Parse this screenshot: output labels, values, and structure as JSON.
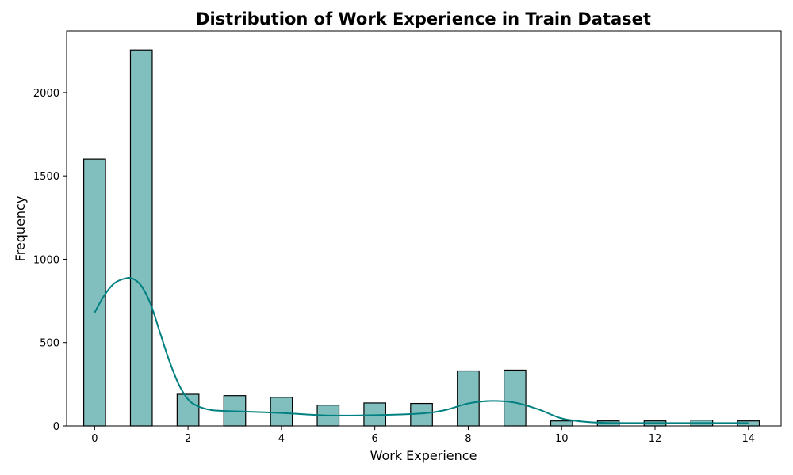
{
  "chart_data": {
    "type": "bar",
    "subtype": "histogram-with-kde",
    "title": "Distribution of Work Experience in Train Dataset",
    "xlabel": "Work Experience",
    "ylabel": "Frequency",
    "xlim": [
      -0.6,
      14.7
    ],
    "ylim": [
      0,
      2370
    ],
    "xticks": [
      0,
      2,
      4,
      6,
      8,
      10,
      12,
      14
    ],
    "yticks": [
      0,
      500,
      1000,
      1500,
      2000
    ],
    "bin_width": 0.4667,
    "bars": [
      {
        "x": 0,
        "value": 1600
      },
      {
        "x": 1,
        "value": 2255
      },
      {
        "x": 2,
        "value": 190
      },
      {
        "x": 3,
        "value": 182
      },
      {
        "x": 4,
        "value": 172
      },
      {
        "x": 5,
        "value": 125
      },
      {
        "x": 6,
        "value": 138
      },
      {
        "x": 7,
        "value": 135
      },
      {
        "x": 8,
        "value": 330
      },
      {
        "x": 9,
        "value": 335
      },
      {
        "x": 10,
        "value": 30
      },
      {
        "x": 11,
        "value": 30
      },
      {
        "x": 12,
        "value": 30
      },
      {
        "x": 13,
        "value": 35
      },
      {
        "x": 14,
        "value": 30
      }
    ],
    "kde": {
      "x": [
        0,
        0.2,
        0.4,
        0.6,
        0.8,
        1.0,
        1.2,
        1.4,
        1.6,
        1.8,
        2.0,
        2.2,
        2.5,
        3.0,
        4.0,
        5.0,
        6.0,
        7.0,
        7.5,
        8.0,
        8.5,
        9.0,
        9.5,
        10.0,
        10.5,
        11.0,
        12.0,
        13.0,
        14.0
      ],
      "y": [
        680,
        780,
        850,
        880,
        885,
        840,
        730,
        560,
        390,
        250,
        160,
        120,
        95,
        88,
        78,
        63,
        65,
        75,
        95,
        135,
        150,
        140,
        100,
        45,
        25,
        18,
        17,
        17,
        17
      ]
    },
    "bar_color": "#81bfbf",
    "bar_edge_color": "#000000",
    "kde_color": "#008080",
    "grid": false,
    "legend": "none"
  }
}
